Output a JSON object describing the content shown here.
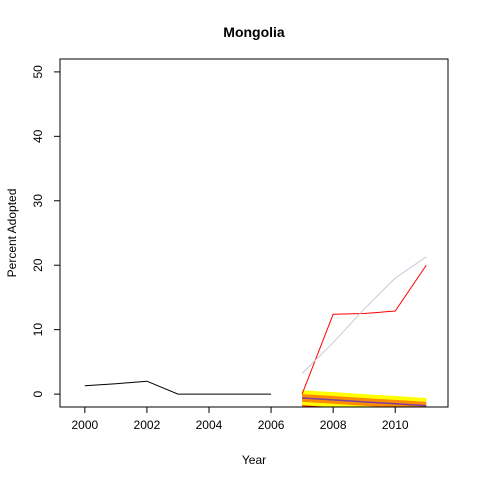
{
  "chart_data": {
    "type": "line",
    "title": "Mongolia",
    "xlabel": "Year",
    "ylabel": "Percent Adopted",
    "xlim": [
      1999.2,
      2011.7
    ],
    "ylim": [
      -2.0,
      52.0
    ],
    "x_ticks": [
      2000,
      2002,
      2004,
      2006,
      2008,
      2010
    ],
    "y_ticks": [
      0,
      10,
      20,
      30,
      40,
      50
    ],
    "grid": false,
    "series": [
      {
        "color": "#000000",
        "x": [
          2000,
          2001,
          2002,
          2003,
          2004,
          2005,
          2006
        ],
        "values": [
          1.3,
          1.6,
          2.0,
          0.0,
          0.0,
          0.0,
          0.0
        ]
      },
      {
        "color": "#ff0000",
        "x": [
          2007,
          2008,
          2009,
          2010,
          2011
        ],
        "values": [
          0.0,
          12.4,
          12.5,
          12.9,
          20.0
        ]
      },
      {
        "color": "#c8c8d8",
        "x": [
          2007,
          2008,
          2009,
          2010,
          2011
        ],
        "values": [
          3.2,
          8.0,
          13.2,
          18.0,
          21.3
        ]
      }
    ],
    "forecast": {
      "x": [
        2007,
        2008,
        2009,
        2010,
        2011
      ],
      "mean": [
        -0.6,
        -0.9,
        -1.2,
        -1.5,
        -1.8
      ],
      "inner_lower": [
        -1.2,
        -1.5,
        -1.8,
        -2.1,
        -2.4
      ],
      "inner_upper": [
        0.0,
        -0.3,
        -0.6,
        -0.9,
        -1.2
      ],
      "outer_lower": [
        -1.8,
        -2.1,
        -2.4,
        -2.7,
        -3.0
      ],
      "outer_upper": [
        0.6,
        0.3,
        0.0,
        -0.3,
        -0.6
      ],
      "mean_color": "#7b3fa0",
      "inner_color": "#ff8c00",
      "outer_color": "#ffff00",
      "edge_color": "#ff0000"
    }
  }
}
